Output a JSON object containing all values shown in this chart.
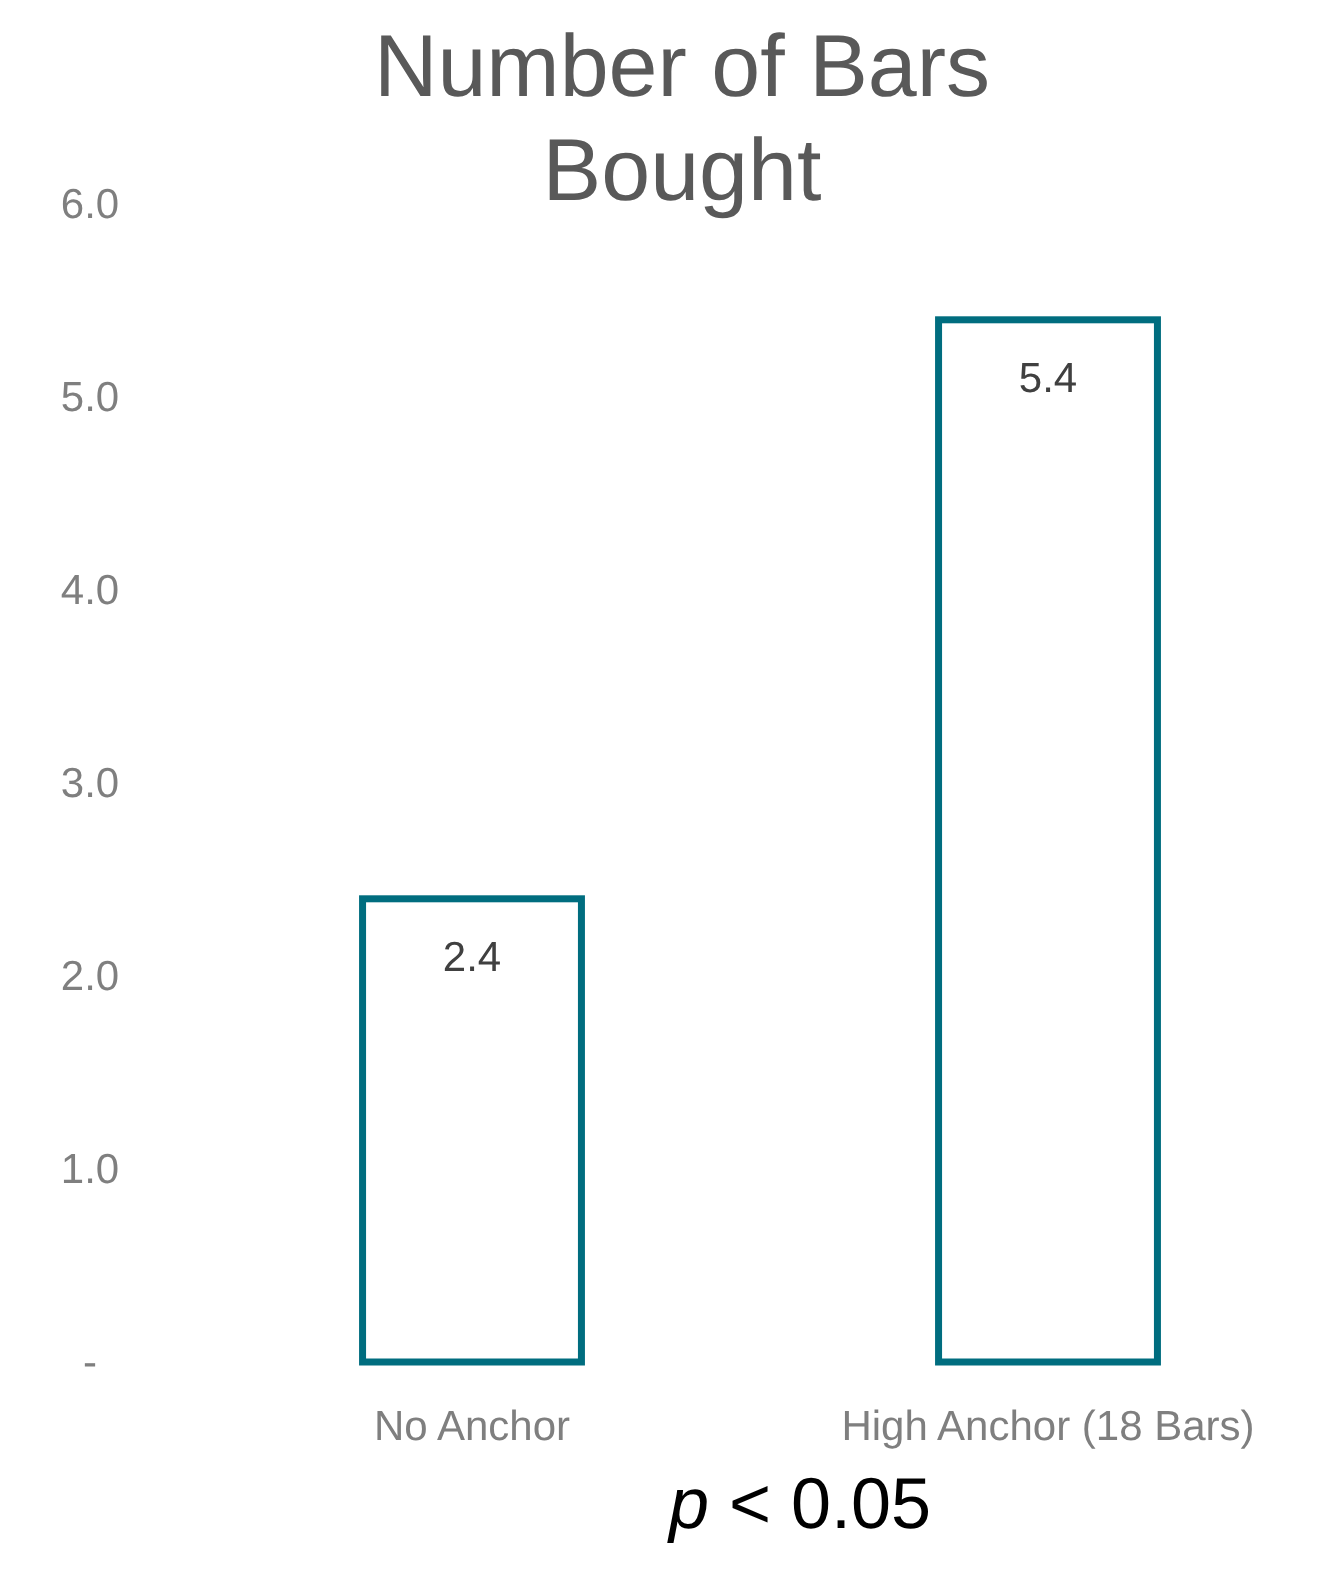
{
  "chart_data": {
    "type": "bar",
    "title": "Number of Bars Bought",
    "categories": [
      "No Anchor",
      "High Anchor (18 Bars)"
    ],
    "values": [
      2.4,
      5.4
    ],
    "color": "#006d7f",
    "ylim": [
      0,
      6
    ],
    "yticks": [
      {
        "value": 0,
        "label": "-"
      },
      {
        "value": 1,
        "label": "1.0"
      },
      {
        "value": 2,
        "label": "2.0"
      },
      {
        "value": 3,
        "label": "3.0"
      },
      {
        "value": 4,
        "label": "4.0"
      },
      {
        "value": 5,
        "label": "5.0"
      },
      {
        "value": 6,
        "label": "6.0"
      }
    ],
    "data_labels": true,
    "annotations": [
      "p < 0.05"
    ]
  }
}
